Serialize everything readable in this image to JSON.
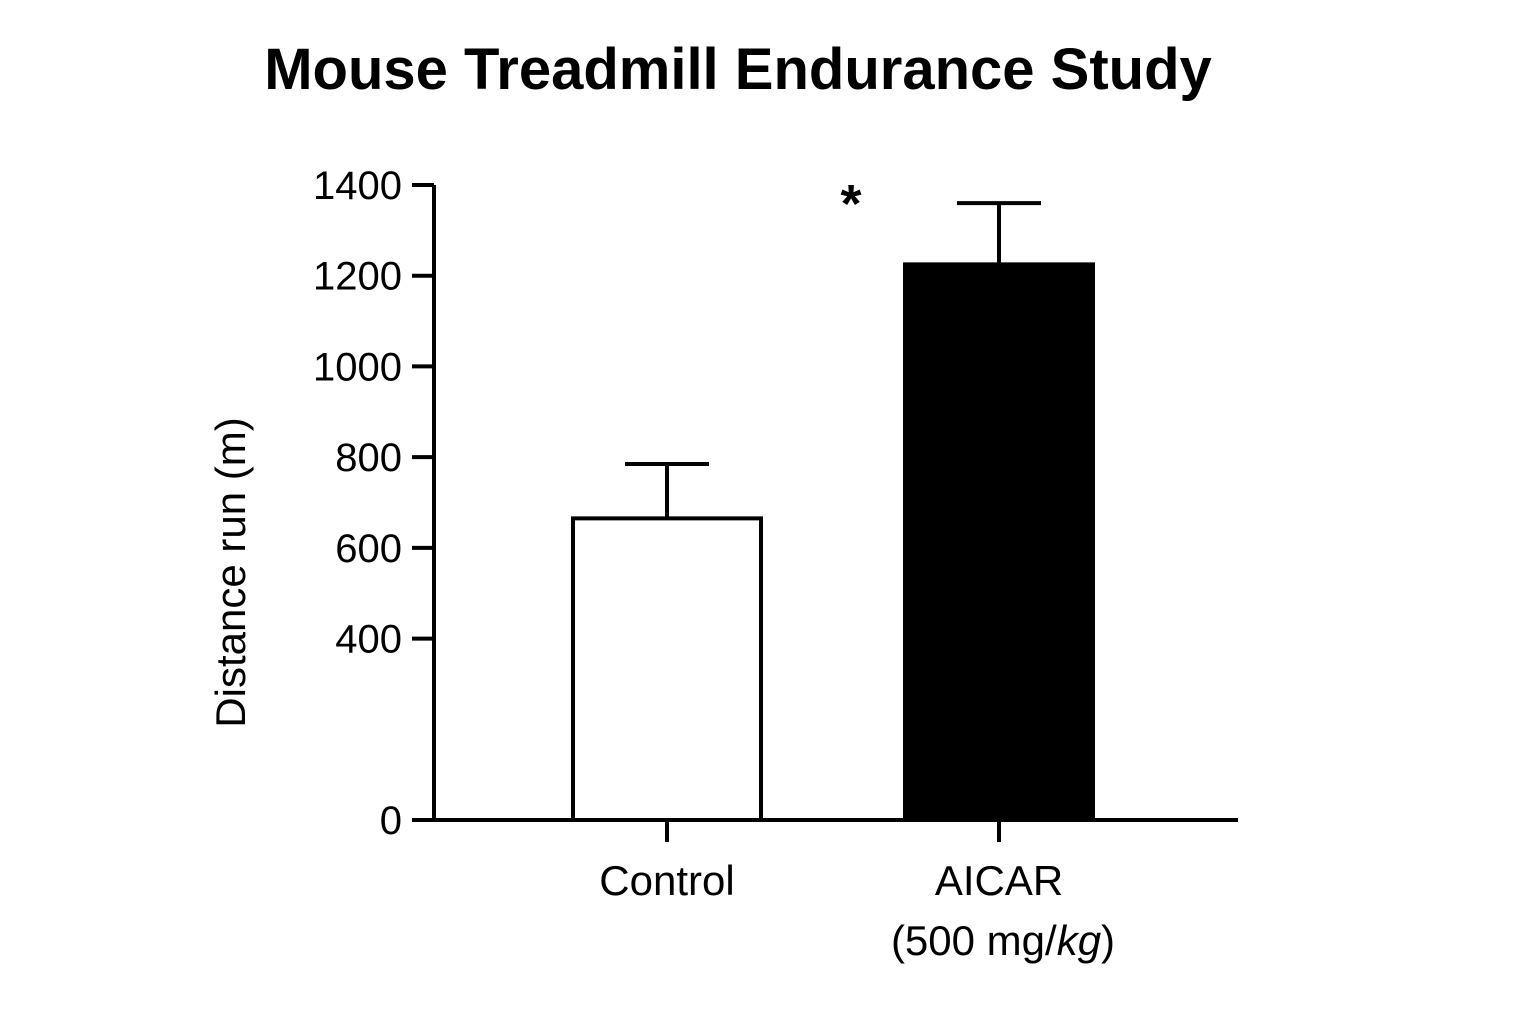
{
  "chart_data": {
    "type": "bar",
    "title": "Mouse Treadmill Endurance Study",
    "ylabel": "Distance run (m)",
    "xlabel": "",
    "ylim": [
      0,
      1400
    ],
    "yticks": [
      0,
      400,
      600,
      800,
      1000,
      1200,
      1400
    ],
    "categories": [
      {
        "line1": "Control",
        "line2": "",
        "line2_unit_plain": "",
        "line2_unit_italic": "",
        "line2_close": ""
      },
      {
        "line1": "AICAR",
        "line2": "(500 mg/",
        "line2_unit_plain": "",
        "line2_unit_italic": "kg",
        "line2_close": ")"
      }
    ],
    "values": [
      665,
      1225
    ],
    "errors": [
      120,
      135
    ],
    "bar_fills": [
      "#ffffff",
      "#000000"
    ],
    "annotation": {
      "text": "*",
      "category_index": 1
    },
    "grid": false,
    "legend": "none"
  }
}
